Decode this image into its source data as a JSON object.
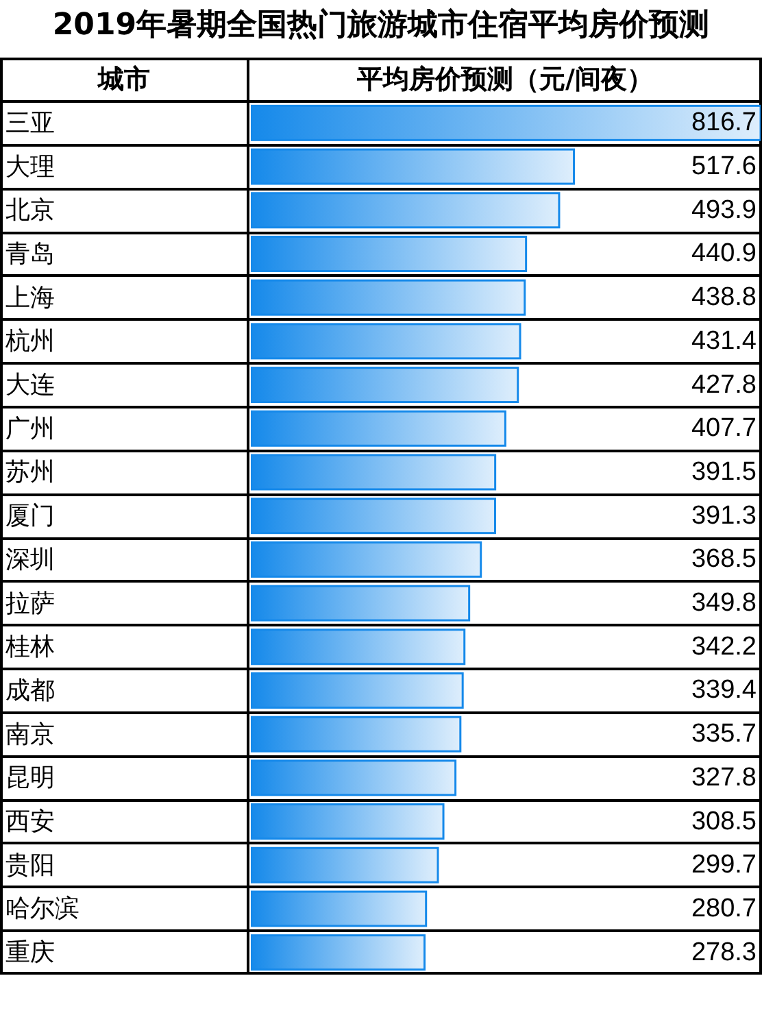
{
  "chart_data": {
    "type": "bar",
    "orientation": "horizontal",
    "title": "2019年暑期全国热门旅游城市住宿平均房价预测",
    "ylabel": "城市",
    "xlabel": "平均房价预测（元/间夜）",
    "categories": [
      "三亚",
      "大理",
      "北京",
      "青岛",
      "上海",
      "杭州",
      "大连",
      "广州",
      "苏州",
      "厦门",
      "深圳",
      "拉萨",
      "桂林",
      "成都",
      "南京",
      "昆明",
      "西安",
      "贵阳",
      "哈尔滨",
      "重庆"
    ],
    "values": [
      816.7,
      517.6,
      493.9,
      440.9,
      438.8,
      431.4,
      427.8,
      407.7,
      391.5,
      391.3,
      368.5,
      349.8,
      342.2,
      339.4,
      335.7,
      327.8,
      308.5,
      299.7,
      280.7,
      278.3
    ],
    "color": "#1589ea",
    "data_labels": true,
    "tick_labels": "y"
  }
}
